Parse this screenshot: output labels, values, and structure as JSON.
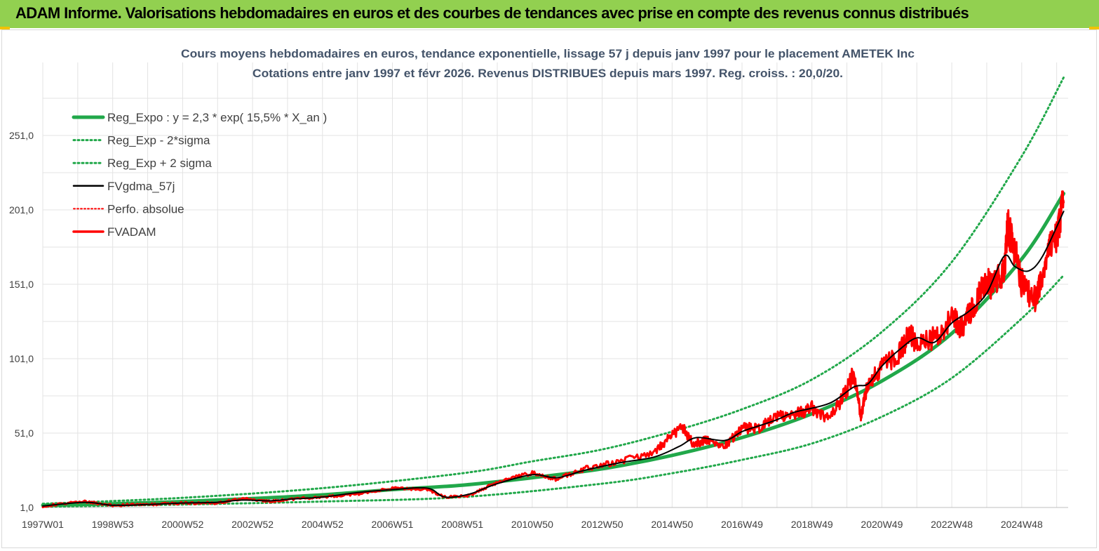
{
  "banner": {
    "title": "ADAM Informe. Valorisations hebdomadaires en euros et des courbes de tendances avec prise en compte des revenus connus distribués",
    "color": "#92d050"
  },
  "chart_data": {
    "type": "line",
    "title": "Cours moyens hebdomadaires en euros, tendance exponentielle, lissage 57 j depuis janv 1997 pour le placement AMETEK Inc",
    "subtitle": "Cotations entre janv 1997 et févr 2026. Revenus DISTRIBUES depuis mars 1997. Reg. croiss. : 20,0/20.",
    "xlabel": "",
    "ylabel": "",
    "x_ticks": [
      "1997W01",
      "1998W53",
      "2000W52",
      "2002W52",
      "2004W52",
      "2006W51",
      "2008W51",
      "2010W50",
      "2012W50",
      "2014W50",
      "2016W49",
      "2018W49",
      "2020W49",
      "2022W48",
      "2024W48"
    ],
    "y_ticks": [
      "1,0",
      "51,0",
      "101,0",
      "151,0",
      "201,0",
      "251,0"
    ],
    "ylim": [
      1,
      298
    ],
    "xlim": [
      1997.0,
      2026.3
    ],
    "grid": true,
    "legend_position": "top-left",
    "legend": [
      {
        "label": "Reg_Expo : y = 2,3 * exp( 15,5% *  X_an )",
        "color": "#21a84a",
        "style": "solid-thick"
      },
      {
        "label": "Reg_Exp - 2*sigma",
        "color": "#21a84a",
        "style": "dotted"
      },
      {
        "label": "Reg_Exp + 2 sigma",
        "color": "#21a84a",
        "style": "dotted"
      },
      {
        "label": "FVgdma_57j",
        "color": "#000000",
        "style": "solid"
      },
      {
        "label": "Perfo. absolue",
        "color": "#ff0000",
        "style": "dotted"
      },
      {
        "label": "FVADAM",
        "color": "#ff0000",
        "style": "solid-thick"
      }
    ],
    "series": [
      {
        "name": "Reg_Expo : y = 2,3 * exp( 15,5% *  X_an )",
        "color": "#21a84a",
        "x": [
          1997,
          1999,
          2001,
          2003,
          2005,
          2007,
          2009,
          2011,
          2013,
          2015,
          2017,
          2019,
          2021,
          2023,
          2025,
          2026.2
        ],
        "y": [
          2.5,
          3.5,
          5,
          7,
          9.5,
          13,
          16,
          21,
          27,
          36,
          48,
          64,
          86,
          118,
          168,
          212
        ]
      },
      {
        "name": "Reg_Exp - 2*sigma",
        "color": "#21a84a",
        "x": [
          1997,
          2001,
          2005,
          2009,
          2013,
          2015,
          2017,
          2019,
          2021,
          2023,
          2025,
          2026.2
        ],
        "y": [
          1.5,
          3,
          5,
          8,
          17,
          24,
          33,
          44,
          62,
          88,
          128,
          157
        ]
      },
      {
        "name": "Reg_Exp + 2 sigma",
        "color": "#21a84a",
        "x": [
          1997,
          2001,
          2005,
          2009,
          2011,
          2013,
          2015,
          2017,
          2019,
          2021,
          2023,
          2025,
          2026.2
        ],
        "y": [
          3.5,
          7.5,
          14,
          24,
          32,
          40,
          52,
          67,
          87,
          119,
          166,
          237,
          290
        ]
      },
      {
        "name": "FVgdma_57j",
        "color": "#000000",
        "x": [
          1997,
          1998.2,
          1999,
          2000,
          2001,
          2002,
          2002.7,
          2003.5,
          2004,
          2005,
          2006,
          2007,
          2008,
          2008.5,
          2009.2,
          2010,
          2011,
          2011.7,
          2012.5,
          2013.5,
          2014.5,
          2015.2,
          2015.7,
          2016.5,
          2017,
          2017.5,
          2018,
          2018.5,
          2019.5,
          2020.2,
          2020.6,
          2021,
          2021.5,
          2022,
          2022.5,
          2023,
          2023.5,
          2024,
          2024.5,
          2024.8,
          2025.2,
          2025.6,
          2026.2
        ],
        "y": [
          2,
          4.5,
          2.5,
          3,
          4,
          4.5,
          6,
          5.5,
          6.5,
          8,
          11,
          13,
          14,
          8,
          10,
          17,
          23,
          21,
          26,
          31,
          35,
          42,
          48,
          46,
          52,
          56,
          60,
          65,
          71,
          82,
          84,
          96,
          107,
          115,
          112,
          125,
          133,
          145,
          170,
          163,
          160,
          170,
          200
        ]
      },
      {
        "name": "Perfo. absolue",
        "color": "#ff0000",
        "x": [
          1997,
          1998.2,
          1999,
          2000,
          2001,
          2002,
          2002.7,
          2003.5,
          2004,
          2005,
          2006,
          2007,
          2008,
          2008.5,
          2009.2,
          2010,
          2011,
          2011.7,
          2012.5,
          2013.5,
          2014.5,
          2015,
          2015.3,
          2015.6,
          2016,
          2016.5,
          2017,
          2017.5,
          2018,
          2018.5,
          2019,
          2019.5,
          2020.0,
          2020.2,
          2020.4,
          2020.6,
          2021,
          2021.5,
          2021.8,
          2022,
          2022.5,
          2023,
          2023.3,
          2023.6,
          2024,
          2024.2,
          2024.5,
          2024.6,
          2024.8,
          2025,
          2025.4,
          2025.7,
          2026,
          2026.2
        ],
        "y": [
          2,
          5,
          2.5,
          3,
          4,
          4,
          7,
          5,
          6.5,
          8,
          10,
          14,
          13,
          8,
          9,
          18,
          24,
          20,
          27,
          32,
          38,
          50,
          55,
          44,
          46,
          42,
          54,
          55,
          62,
          63,
          68,
          60,
          80,
          92,
          62,
          84,
          95,
          105,
          118,
          110,
          115,
          128,
          122,
          136,
          152,
          150,
          160,
          190,
          175,
          152,
          140,
          170,
          185,
          206
        ]
      },
      {
        "name": "FVADAM",
        "color": "#ff0000",
        "x": [
          1997,
          1998.2,
          1999,
          2000,
          2001,
          2002,
          2002.7,
          2003.5,
          2004,
          2005,
          2006,
          2007,
          2008,
          2008.5,
          2009.2,
          2010,
          2011,
          2011.7,
          2012.5,
          2013.5,
          2014.5,
          2015,
          2015.3,
          2015.6,
          2016,
          2016.5,
          2017,
          2017.5,
          2018,
          2018.5,
          2019,
          2019.5,
          2020.0,
          2020.2,
          2020.4,
          2020.6,
          2021,
          2021.5,
          2021.8,
          2022,
          2022.5,
          2023,
          2023.3,
          2023.6,
          2024,
          2024.2,
          2024.5,
          2024.6,
          2024.8,
          2025,
          2025.4,
          2025.7,
          2026,
          2026.2
        ],
        "y": [
          2,
          5,
          2.5,
          3,
          4,
          4,
          7,
          5,
          6.5,
          8,
          10,
          14,
          13,
          8,
          9,
          18,
          24,
          20,
          27,
          32,
          38,
          50,
          55,
          44,
          46,
          42,
          54,
          55,
          62,
          63,
          68,
          60,
          80,
          92,
          62,
          84,
          95,
          105,
          118,
          110,
          115,
          128,
          122,
          136,
          152,
          150,
          160,
          190,
          175,
          152,
          140,
          170,
          185,
          206
        ]
      }
    ]
  }
}
